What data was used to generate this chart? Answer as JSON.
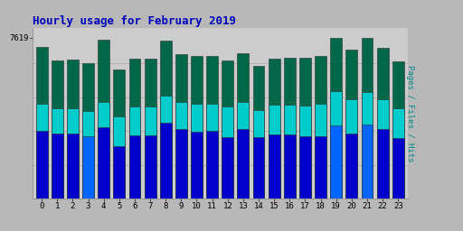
{
  "title": "Hourly usage for February 2019",
  "hours": [
    0,
    1,
    2,
    3,
    4,
    5,
    6,
    7,
    8,
    9,
    10,
    11,
    12,
    13,
    14,
    15,
    16,
    17,
    18,
    19,
    20,
    21,
    22,
    23
  ],
  "hits": [
    7180,
    6560,
    6580,
    6420,
    7550,
    6100,
    6650,
    6650,
    7480,
    6850,
    6750,
    6780,
    6560,
    6900,
    6300,
    6650,
    6680,
    6680,
    6760,
    7619,
    7050,
    7619,
    7150,
    6500
  ],
  "files": [
    4500,
    4300,
    4300,
    4150,
    4600,
    3900,
    4350,
    4350,
    4900,
    4600,
    4500,
    4500,
    4350,
    4600,
    4200,
    4450,
    4450,
    4400,
    4500,
    5100,
    4700,
    5050,
    4700,
    4300
  ],
  "pages": [
    3200,
    3100,
    3100,
    2950,
    3400,
    2500,
    3000,
    2980,
    3600,
    3300,
    3180,
    3200,
    2900,
    3300,
    2900,
    3050,
    3050,
    2950,
    2950,
    3480,
    3100,
    3530,
    3280,
    2880
  ],
  "special_blue_pages": [
    3,
    19,
    21
  ],
  "hit_color": "#006848",
  "file_color": "#00cccc",
  "page_color_normal": "#0000cc",
  "page_color_blue": "#0066ff",
  "bg_color": "#b8b8b8",
  "plot_bg": "#cccccc",
  "title_color": "#0000bb",
  "ylabel": "Pages / Files / Hits",
  "ylabel_color": "#008888",
  "ytick_val": 7619,
  "ytick_label": "7619",
  "ymax": 8100,
  "ymin": 0,
  "bar_width": 0.75,
  "figwidth": 5.12,
  "figheight": 2.56,
  "dpi": 100
}
